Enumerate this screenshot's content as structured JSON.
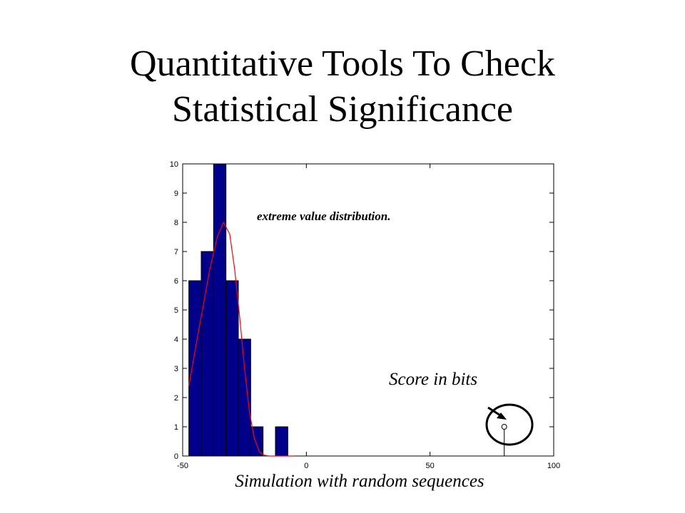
{
  "slide": {
    "title_line1": "Quantitative Tools To Check",
    "title_line2": "Statistical Significance"
  },
  "annotations": {
    "curve_label": "extreme value distribution.",
    "score_label": "Score in bits",
    "caption": "Simulation with random sequences"
  },
  "colors": {
    "bar_fill": "#00008B",
    "bar_edge": "#000000",
    "curve": "#FF0000",
    "axes": "#000000"
  },
  "chart_data": {
    "type": "bar",
    "subtype": "histogram-with-fitted-curve",
    "bins": [
      {
        "x0": -47.5,
        "x1": -42.5,
        "count": 6
      },
      {
        "x0": -42.5,
        "x1": -37.5,
        "count": 7
      },
      {
        "x0": -37.5,
        "x1": -32.5,
        "count": 10
      },
      {
        "x0": -32.5,
        "x1": -27.5,
        "count": 6
      },
      {
        "x0": -27.5,
        "x1": -22.5,
        "count": 4
      },
      {
        "x0": -22.5,
        "x1": -17.5,
        "count": 1
      },
      {
        "x0": -17.5,
        "x1": -12.5,
        "count": 0
      },
      {
        "x0": -12.5,
        "x1": -7.5,
        "count": 1
      }
    ],
    "fitted_curve": {
      "name": "extreme value distribution",
      "points": [
        [
          -47.5,
          2.4
        ],
        [
          -45,
          3.6
        ],
        [
          -42,
          5.0
        ],
        [
          -39,
          6.4
        ],
        [
          -36,
          7.5
        ],
        [
          -33.5,
          8.0
        ],
        [
          -31,
          7.6
        ],
        [
          -29,
          6.4
        ],
        [
          -27,
          4.8
        ],
        [
          -25,
          3.0
        ],
        [
          -23,
          1.5
        ],
        [
          -21,
          0.6
        ],
        [
          -19,
          0.15
        ],
        [
          -17,
          0.03
        ],
        [
          -15,
          0.0
        ],
        [
          -5,
          0.0
        ]
      ]
    },
    "outlier": {
      "x": 80,
      "y": 1
    },
    "xlim": [
      -50,
      100
    ],
    "ylim": [
      0,
      10
    ],
    "xticks": [
      -50,
      0,
      50,
      100
    ],
    "yticks": [
      0,
      1,
      2,
      3,
      4,
      5,
      6,
      7,
      8,
      9,
      10
    ],
    "grid": false
  }
}
